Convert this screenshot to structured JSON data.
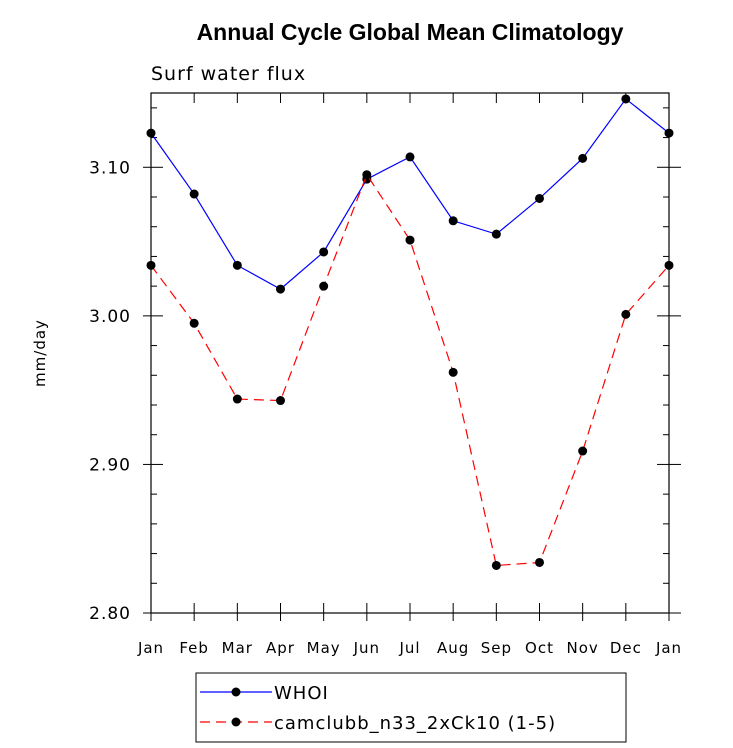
{
  "chart_data": {
    "type": "line",
    "title": "Annual Cycle Global Mean Climatology",
    "subtitle": "Surf water flux",
    "xlabel": "",
    "ylabel": "mm/day",
    "categories": [
      "Jan",
      "Feb",
      "Mar",
      "Apr",
      "May",
      "Jun",
      "Jul",
      "Aug",
      "Sep",
      "Oct",
      "Nov",
      "Dec",
      "Jan"
    ],
    "ylim": [
      2.8,
      3.15
    ],
    "yticks": [
      2.8,
      2.9,
      3.0,
      3.1
    ],
    "ytick_labels": [
      "2.80",
      "2.90",
      "3.00",
      "3.10"
    ],
    "grid": false,
    "legend_position": "bottom",
    "series": [
      {
        "name": "WHOI",
        "color": "#0000ff",
        "dash": "solid",
        "values": [
          3.123,
          3.082,
          3.034,
          3.018,
          3.043,
          3.092,
          3.107,
          3.064,
          3.055,
          3.079,
          3.106,
          3.146,
          3.123
        ]
      },
      {
        "name": "camclubb_n33_2xCk10 (1-5)",
        "color": "#ff0000",
        "dash": "dashed",
        "values": [
          3.034,
          2.995,
          2.944,
          2.943,
          3.02,
          3.095,
          3.051,
          2.962,
          2.832,
          2.834,
          2.909,
          3.001,
          3.034
        ]
      }
    ]
  }
}
